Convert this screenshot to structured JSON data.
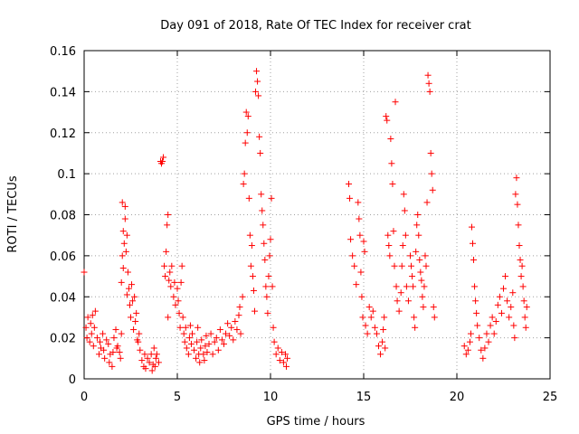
{
  "chart_data": {
    "type": "scatter",
    "title": "Day 091 of 2018, Rate Of TEC Index for receiver crat",
    "xlabel": "GPS time / hours",
    "ylabel": "ROTI / TECUs",
    "xlim": [
      0,
      25
    ],
    "ylim": [
      0,
      0.16
    ],
    "xticks": [
      0,
      5,
      10,
      15,
      20,
      25
    ],
    "xtick_labels": [
      "0",
      "5",
      "10",
      "15",
      "20",
      "25"
    ],
    "yticks": [
      0,
      0.02,
      0.04,
      0.06,
      0.08,
      0.1,
      0.12,
      0.14,
      0.16
    ],
    "ytick_labels": [
      "0",
      "0.02",
      "0.04",
      "0.06",
      "0.08",
      "0.1",
      "0.12",
      "0.14",
      "0.16"
    ],
    "grid": true,
    "marker": "+",
    "marker_color": "#ff0000",
    "series": [
      {
        "name": "ROTI",
        "points": [
          [
            0.0,
            0.052
          ],
          [
            0.1,
            0.025
          ],
          [
            0.15,
            0.02
          ],
          [
            0.2,
            0.03
          ],
          [
            0.3,
            0.018
          ],
          [
            0.35,
            0.027
          ],
          [
            0.4,
            0.022
          ],
          [
            0.45,
            0.031
          ],
          [
            0.5,
            0.016
          ],
          [
            0.55,
            0.025
          ],
          [
            0.6,
            0.033
          ],
          [
            0.7,
            0.02
          ],
          [
            0.8,
            0.012
          ],
          [
            0.85,
            0.018
          ],
          [
            0.9,
            0.015
          ],
          [
            1.0,
            0.022
          ],
          [
            1.05,
            0.014
          ],
          [
            1.1,
            0.01
          ],
          [
            1.2,
            0.019
          ],
          [
            1.3,
            0.017
          ],
          [
            1.35,
            0.008
          ],
          [
            1.4,
            0.012
          ],
          [
            1.5,
            0.006
          ],
          [
            1.55,
            0.013
          ],
          [
            1.6,
            0.02
          ],
          [
            1.7,
            0.024
          ],
          [
            1.75,
            0.015
          ],
          [
            1.8,
            0.016
          ],
          [
            1.9,
            0.013
          ],
          [
            1.95,
            0.01
          ],
          [
            2.0,
            0.022
          ],
          [
            2.0,
            0.047
          ],
          [
            2.05,
            0.06
          ],
          [
            2.05,
            0.086
          ],
          [
            2.1,
            0.072
          ],
          [
            2.1,
            0.054
          ],
          [
            2.15,
            0.066
          ],
          [
            2.2,
            0.078
          ],
          [
            2.2,
            0.084
          ],
          [
            2.25,
            0.062
          ],
          [
            2.3,
            0.07
          ],
          [
            2.3,
            0.041
          ],
          [
            2.35,
            0.052
          ],
          [
            2.4,
            0.044
          ],
          [
            2.45,
            0.036
          ],
          [
            2.5,
            0.03
          ],
          [
            2.55,
            0.046
          ],
          [
            2.6,
            0.038
          ],
          [
            2.65,
            0.024
          ],
          [
            2.7,
            0.04
          ],
          [
            2.75,
            0.028
          ],
          [
            2.8,
            0.032
          ],
          [
            2.85,
            0.019
          ],
          [
            2.9,
            0.018
          ],
          [
            2.95,
            0.022
          ],
          [
            3.0,
            0.014
          ],
          [
            3.1,
            0.009
          ],
          [
            3.2,
            0.006
          ],
          [
            3.25,
            0.012
          ],
          [
            3.3,
            0.005
          ],
          [
            3.4,
            0.01
          ],
          [
            3.5,
            0.008
          ],
          [
            3.6,
            0.012
          ],
          [
            3.65,
            0.004
          ],
          [
            3.7,
            0.007
          ],
          [
            3.75,
            0.015
          ],
          [
            3.8,
            0.006
          ],
          [
            3.85,
            0.01
          ],
          [
            3.9,
            0.012
          ],
          [
            4.0,
            0.008
          ],
          [
            4.1,
            0.106
          ],
          [
            4.15,
            0.105
          ],
          [
            4.2,
            0.106
          ],
          [
            4.25,
            0.108
          ],
          [
            4.3,
            0.055
          ],
          [
            4.35,
            0.05
          ],
          [
            4.4,
            0.062
          ],
          [
            4.45,
            0.075
          ],
          [
            4.5,
            0.08
          ],
          [
            4.5,
            0.03
          ],
          [
            4.55,
            0.048
          ],
          [
            4.6,
            0.052
          ],
          [
            4.65,
            0.045
          ],
          [
            4.7,
            0.055
          ],
          [
            4.8,
            0.04
          ],
          [
            4.85,
            0.047
          ],
          [
            4.9,
            0.036
          ],
          [
            5.0,
            0.044
          ],
          [
            5.05,
            0.038
          ],
          [
            5.1,
            0.032
          ],
          [
            5.15,
            0.025
          ],
          [
            5.2,
            0.047
          ],
          [
            5.25,
            0.055
          ],
          [
            5.3,
            0.03
          ],
          [
            5.35,
            0.022
          ],
          [
            5.4,
            0.018
          ],
          [
            5.45,
            0.025
          ],
          [
            5.5,
            0.015
          ],
          [
            5.6,
            0.012
          ],
          [
            5.65,
            0.02
          ],
          [
            5.7,
            0.026
          ],
          [
            5.75,
            0.017
          ],
          [
            5.8,
            0.022
          ],
          [
            5.9,
            0.014
          ],
          [
            6.0,
            0.01
          ],
          [
            6.05,
            0.018
          ],
          [
            6.1,
            0.025
          ],
          [
            6.15,
            0.012
          ],
          [
            6.2,
            0.008
          ],
          [
            6.25,
            0.015
          ],
          [
            6.3,
            0.019
          ],
          [
            6.4,
            0.012
          ],
          [
            6.45,
            0.009
          ],
          [
            6.5,
            0.016
          ],
          [
            6.55,
            0.021
          ],
          [
            6.6,
            0.013
          ],
          [
            6.7,
            0.017
          ],
          [
            6.8,
            0.022
          ],
          [
            6.9,
            0.012
          ],
          [
            7.0,
            0.018
          ],
          [
            7.1,
            0.02
          ],
          [
            7.2,
            0.014
          ],
          [
            7.3,
            0.024
          ],
          [
            7.4,
            0.019
          ],
          [
            7.5,
            0.017
          ],
          [
            7.6,
            0.022
          ],
          [
            7.7,
            0.027
          ],
          [
            7.8,
            0.021
          ],
          [
            7.9,
            0.025
          ],
          [
            8.0,
            0.019
          ],
          [
            8.1,
            0.028
          ],
          [
            8.2,
            0.024
          ],
          [
            8.3,
            0.031
          ],
          [
            8.35,
            0.035
          ],
          [
            8.4,
            0.022
          ],
          [
            8.5,
            0.04
          ],
          [
            8.55,
            0.095
          ],
          [
            8.6,
            0.1
          ],
          [
            8.65,
            0.115
          ],
          [
            8.7,
            0.13
          ],
          [
            8.75,
            0.12
          ],
          [
            8.8,
            0.128
          ],
          [
            8.85,
            0.088
          ],
          [
            8.9,
            0.07
          ],
          [
            8.95,
            0.055
          ],
          [
            9.0,
            0.065
          ],
          [
            9.05,
            0.05
          ],
          [
            9.1,
            0.043
          ],
          [
            9.15,
            0.033
          ],
          [
            9.2,
            0.14
          ],
          [
            9.25,
            0.15
          ],
          [
            9.3,
            0.145
          ],
          [
            9.35,
            0.138
          ],
          [
            9.4,
            0.118
          ],
          [
            9.45,
            0.11
          ],
          [
            9.5,
            0.09
          ],
          [
            9.55,
            0.082
          ],
          [
            9.6,
            0.075
          ],
          [
            9.65,
            0.066
          ],
          [
            9.7,
            0.058
          ],
          [
            9.75,
            0.045
          ],
          [
            9.8,
            0.04
          ],
          [
            9.85,
            0.032
          ],
          [
            9.9,
            0.05
          ],
          [
            9.95,
            0.06
          ],
          [
            10.0,
            0.068
          ],
          [
            10.05,
            0.088
          ],
          [
            10.1,
            0.045
          ],
          [
            10.15,
            0.025
          ],
          [
            10.2,
            0.018
          ],
          [
            10.3,
            0.012
          ],
          [
            10.4,
            0.015
          ],
          [
            10.5,
            0.009
          ],
          [
            10.6,
            0.013
          ],
          [
            10.7,
            0.008
          ],
          [
            10.8,
            0.012
          ],
          [
            10.85,
            0.006
          ],
          [
            10.9,
            0.01
          ],
          [
            14.2,
            0.095
          ],
          [
            14.25,
            0.088
          ],
          [
            14.3,
            0.068
          ],
          [
            14.4,
            0.06
          ],
          [
            14.5,
            0.055
          ],
          [
            14.6,
            0.046
          ],
          [
            14.7,
            0.086
          ],
          [
            14.75,
            0.078
          ],
          [
            14.8,
            0.07
          ],
          [
            14.85,
            0.052
          ],
          [
            14.9,
            0.04
          ],
          [
            14.95,
            0.03
          ],
          [
            15.0,
            0.067
          ],
          [
            15.05,
            0.062
          ],
          [
            15.1,
            0.026
          ],
          [
            15.2,
            0.022
          ],
          [
            15.3,
            0.035
          ],
          [
            15.4,
            0.03
          ],
          [
            15.5,
            0.033
          ],
          [
            15.6,
            0.025
          ],
          [
            15.7,
            0.022
          ],
          [
            15.8,
            0.016
          ],
          [
            15.9,
            0.012
          ],
          [
            16.0,
            0.018
          ],
          [
            16.05,
            0.024
          ],
          [
            16.1,
            0.03
          ],
          [
            16.15,
            0.015
          ],
          [
            16.2,
            0.128
          ],
          [
            16.25,
            0.126
          ],
          [
            16.3,
            0.07
          ],
          [
            16.35,
            0.065
          ],
          [
            16.4,
            0.06
          ],
          [
            16.45,
            0.117
          ],
          [
            16.5,
            0.105
          ],
          [
            16.55,
            0.095
          ],
          [
            16.6,
            0.072
          ],
          [
            16.65,
            0.055
          ],
          [
            16.7,
            0.135
          ],
          [
            16.75,
            0.045
          ],
          [
            16.8,
            0.038
          ],
          [
            16.9,
            0.033
          ],
          [
            17.0,
            0.042
          ],
          [
            17.05,
            0.055
          ],
          [
            17.1,
            0.065
          ],
          [
            17.15,
            0.09
          ],
          [
            17.2,
            0.082
          ],
          [
            17.25,
            0.07
          ],
          [
            17.3,
            0.045
          ],
          [
            17.4,
            0.038
          ],
          [
            17.5,
            0.06
          ],
          [
            17.55,
            0.055
          ],
          [
            17.6,
            0.05
          ],
          [
            17.65,
            0.045
          ],
          [
            17.7,
            0.03
          ],
          [
            17.75,
            0.025
          ],
          [
            17.8,
            0.062
          ],
          [
            17.85,
            0.075
          ],
          [
            17.9,
            0.08
          ],
          [
            17.95,
            0.07
          ],
          [
            18.0,
            0.058
          ],
          [
            18.05,
            0.052
          ],
          [
            18.1,
            0.048
          ],
          [
            18.15,
            0.04
          ],
          [
            18.2,
            0.035
          ],
          [
            18.25,
            0.045
          ],
          [
            18.3,
            0.06
          ],
          [
            18.35,
            0.055
          ],
          [
            18.4,
            0.086
          ],
          [
            18.45,
            0.148
          ],
          [
            18.5,
            0.144
          ],
          [
            18.55,
            0.14
          ],
          [
            18.6,
            0.11
          ],
          [
            18.65,
            0.1
          ],
          [
            18.7,
            0.092
          ],
          [
            18.75,
            0.035
          ],
          [
            18.8,
            0.03
          ],
          [
            20.4,
            0.016
          ],
          [
            20.5,
            0.012
          ],
          [
            20.6,
            0.014
          ],
          [
            20.7,
            0.018
          ],
          [
            20.75,
            0.022
          ],
          [
            20.8,
            0.074
          ],
          [
            20.85,
            0.066
          ],
          [
            20.9,
            0.058
          ],
          [
            20.95,
            0.045
          ],
          [
            21.0,
            0.038
          ],
          [
            21.05,
            0.032
          ],
          [
            21.1,
            0.026
          ],
          [
            21.2,
            0.02
          ],
          [
            21.3,
            0.014
          ],
          [
            21.4,
            0.01
          ],
          [
            21.5,
            0.015
          ],
          [
            21.6,
            0.022
          ],
          [
            21.7,
            0.018
          ],
          [
            21.8,
            0.026
          ],
          [
            21.9,
            0.03
          ],
          [
            22.0,
            0.022
          ],
          [
            22.1,
            0.028
          ],
          [
            22.2,
            0.036
          ],
          [
            22.3,
            0.04
          ],
          [
            22.4,
            0.032
          ],
          [
            22.5,
            0.044
          ],
          [
            22.6,
            0.05
          ],
          [
            22.7,
            0.038
          ],
          [
            22.8,
            0.03
          ],
          [
            22.9,
            0.035
          ],
          [
            23.0,
            0.042
          ],
          [
            23.05,
            0.026
          ],
          [
            23.1,
            0.02
          ],
          [
            23.15,
            0.09
          ],
          [
            23.2,
            0.098
          ],
          [
            23.25,
            0.085
          ],
          [
            23.3,
            0.075
          ],
          [
            23.35,
            0.065
          ],
          [
            23.4,
            0.058
          ],
          [
            23.45,
            0.05
          ],
          [
            23.5,
            0.055
          ],
          [
            23.55,
            0.045
          ],
          [
            23.6,
            0.038
          ],
          [
            23.65,
            0.03
          ],
          [
            23.7,
            0.025
          ],
          [
            23.75,
            0.035
          ]
        ]
      }
    ]
  }
}
